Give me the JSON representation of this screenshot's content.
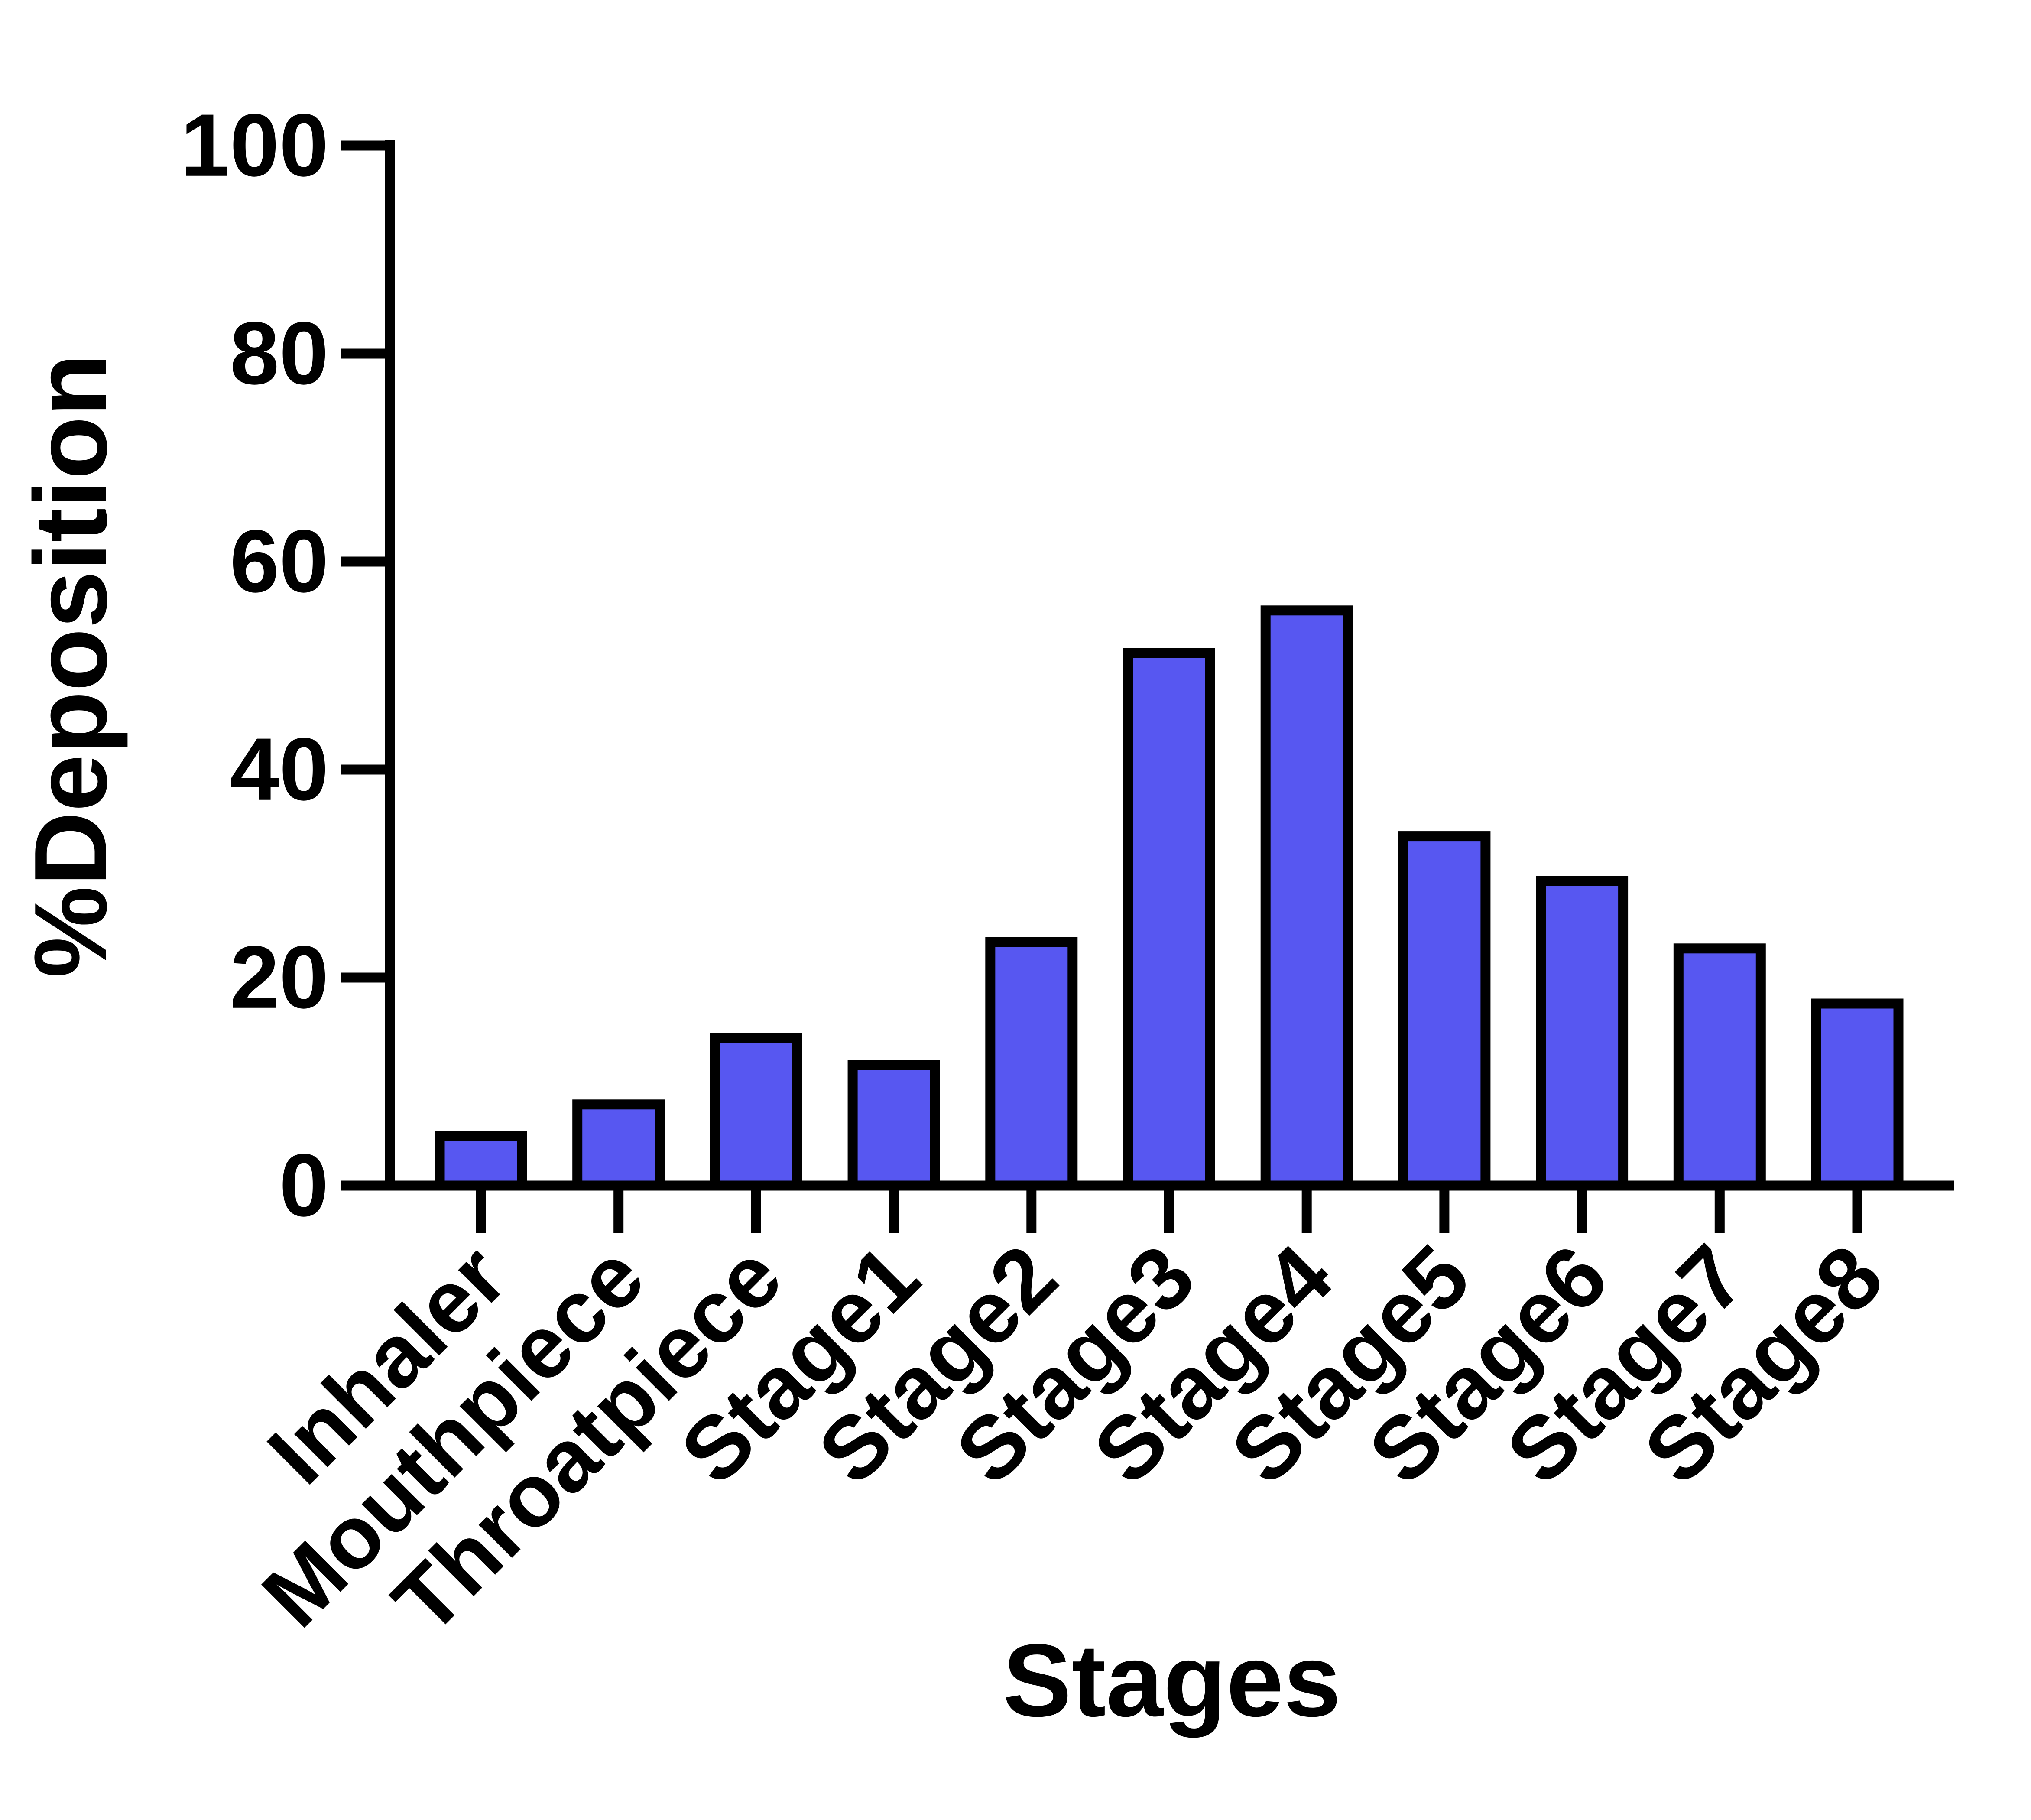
{
  "chart_data": {
    "type": "bar",
    "title": "",
    "xlabel": "Stages",
    "ylabel": "%Deposition",
    "categories": [
      "Inhaler",
      "Mouthpiece",
      "Throatpiece",
      "Stage1",
      "Stage2",
      "Stage3",
      "Stage4",
      "Stage5",
      "Stage6",
      "Stage7",
      "Stage8"
    ],
    "values": [
      4.8,
      7.8,
      14.2,
      11.6,
      23.4,
      51.2,
      55.3,
      33.6,
      29.3,
      22.8,
      17.5
    ],
    "ylim": [
      0,
      100
    ],
    "yticks": [
      0,
      20,
      40,
      60,
      80,
      100
    ],
    "grid": false,
    "legend": null,
    "bar_fill_color": "#5757F1",
    "bar_border_color": "#000000",
    "axis_color": "#000000"
  }
}
